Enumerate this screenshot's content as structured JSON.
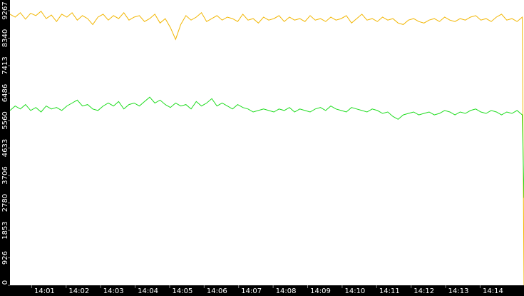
{
  "chart_data": {
    "type": "line",
    "x": [
      0,
      0.15,
      0.3,
      0.45,
      0.6,
      0.75,
      0.9,
      1.05,
      1.2,
      1.35,
      1.5,
      1.65,
      1.8,
      1.95,
      2.1,
      2.25,
      2.4,
      2.55,
      2.7,
      2.85,
      3,
      3.15,
      3.3,
      3.45,
      3.6,
      3.75,
      3.9,
      4.05,
      4.2,
      4.35,
      4.5,
      4.65,
      4.8,
      4.95,
      5.1,
      5.25,
      5.4,
      5.55,
      5.7,
      5.85,
      6,
      6.15,
      6.3,
      6.45,
      6.6,
      6.75,
      6.9,
      7.05,
      7.2,
      7.35,
      7.5,
      7.65,
      7.8,
      7.95,
      8.1,
      8.25,
      8.4,
      8.55,
      8.7,
      8.85,
      9,
      9.15,
      9.3,
      9.45,
      9.6,
      9.75,
      9.9,
      10.05,
      10.2,
      10.35,
      10.5,
      10.65,
      10.8,
      10.95,
      11.1,
      11.25,
      11.4,
      11.55,
      11.7,
      11.85,
      12,
      12.15,
      12.3,
      12.45,
      12.6,
      12.75,
      12.9,
      13.05,
      13.2,
      13.35,
      13.5,
      13.65,
      13.8,
      13.95,
      14.1,
      14.25,
      14.4,
      14.55,
      14.7,
      14.85,
      14.9
    ],
    "series": [
      {
        "color": "#f2b600",
        "values": [
          9150,
          9050,
          9200,
          8980,
          9180,
          9100,
          9250,
          9000,
          9120,
          8900,
          9150,
          9050,
          9200,
          8950,
          9100,
          9000,
          8800,
          9050,
          9150,
          8950,
          9100,
          9000,
          9200,
          8950,
          9050,
          9100,
          8900,
          9000,
          9150,
          8850,
          9000,
          8700,
          8300,
          8800,
          9100,
          8950,
          9050,
          9200,
          8900,
          9000,
          9100,
          8950,
          9050,
          9000,
          8900,
          9150,
          8950,
          9000,
          8850,
          9050,
          8950,
          9000,
          9100,
          8900,
          9050,
          8950,
          9000,
          8900,
          9100,
          8950,
          9000,
          8900,
          9050,
          8950,
          9000,
          9100,
          8850,
          9000,
          9150,
          8950,
          9000,
          8900,
          9050,
          8950,
          9000,
          8850,
          8800,
          8950,
          9000,
          8900,
          8850,
          8950,
          9000,
          8900,
          9050,
          8950,
          8900,
          9000,
          8950,
          9050,
          9100,
          8950,
          9000,
          8900,
          9050,
          9150,
          8950,
          9000,
          8900,
          9050,
          0
        ]
      },
      {
        "color": "#1edc1e",
        "values": [
          5900,
          6050,
          5950,
          6100,
          5900,
          6000,
          5850,
          6050,
          5950,
          6000,
          5900,
          6050,
          6150,
          6250,
          6050,
          6100,
          5950,
          5900,
          6050,
          6150,
          6050,
          6200,
          5950,
          6100,
          6150,
          6050,
          6200,
          6350,
          6150,
          6250,
          6100,
          6000,
          6150,
          6050,
          6100,
          5950,
          6200,
          6050,
          6150,
          6300,
          6050,
          6150,
          6050,
          5950,
          6100,
          6000,
          5950,
          5850,
          5900,
          5950,
          5900,
          5850,
          5950,
          5900,
          6000,
          5850,
          5950,
          5900,
          5850,
          5950,
          6000,
          5900,
          6050,
          5950,
          5900,
          5850,
          6000,
          5950,
          5900,
          5850,
          5950,
          5900,
          5800,
          5850,
          5700,
          5600,
          5750,
          5800,
          5850,
          5750,
          5800,
          5850,
          5750,
          5800,
          5900,
          5850,
          5750,
          5850,
          5800,
          5900,
          5950,
          5850,
          5800,
          5900,
          5850,
          5750,
          5850,
          5800,
          5900,
          5750,
          2950
        ]
      }
    ],
    "xlim": [
      0,
      14.9
    ],
    "xticks": [
      {
        "value": 1,
        "label": "14:01"
      },
      {
        "value": 2,
        "label": "14:02"
      },
      {
        "value": 3,
        "label": "14:03"
      },
      {
        "value": 4,
        "label": "14:04"
      },
      {
        "value": 5,
        "label": "14:05"
      },
      {
        "value": 6,
        "label": "14:06"
      },
      {
        "value": 7,
        "label": "14:07"
      },
      {
        "value": 8,
        "label": "14:08"
      },
      {
        "value": 9,
        "label": "14:09"
      },
      {
        "value": 10,
        "label": "14:10"
      },
      {
        "value": 11,
        "label": "14:11"
      },
      {
        "value": 12,
        "label": "14:12"
      },
      {
        "value": 13,
        "label": "14:13"
      },
      {
        "value": 14,
        "label": "14:14"
      }
    ],
    "ylim": [
      0,
      9628
    ],
    "yticks": [
      0,
      926,
      1853,
      2780,
      3706,
      4633,
      5560,
      6486,
      7413,
      8340,
      9267
    ]
  }
}
